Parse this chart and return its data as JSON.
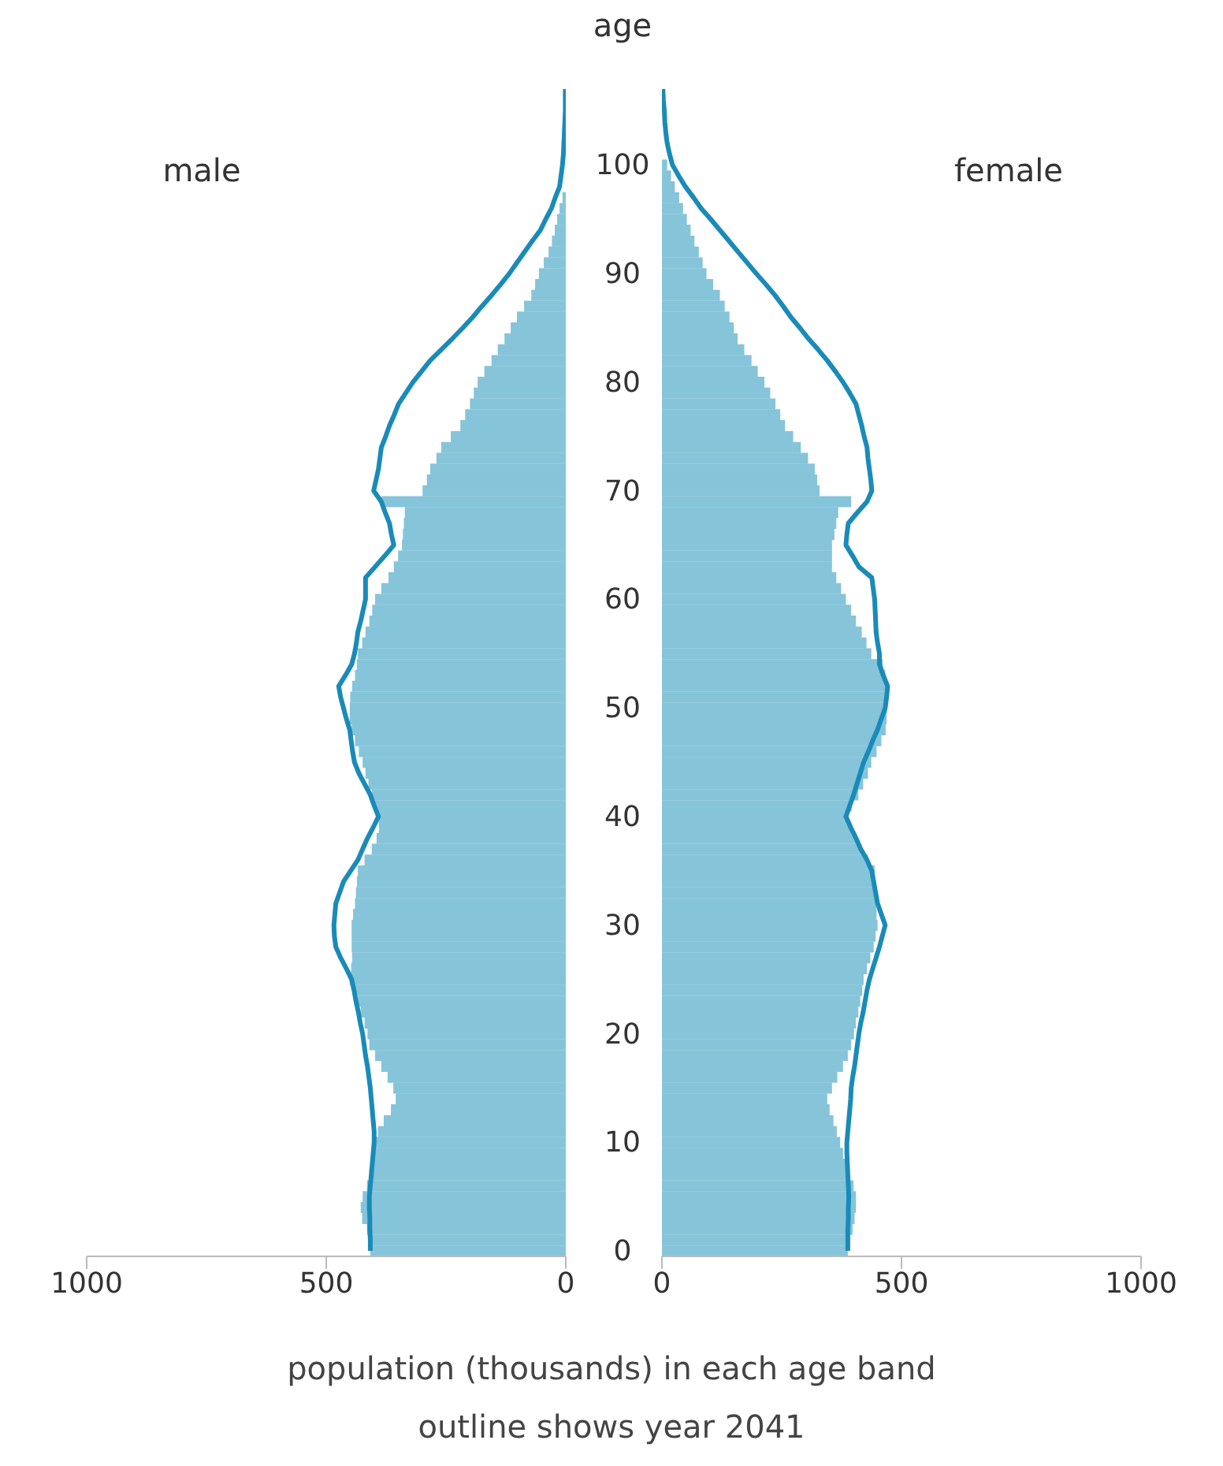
{
  "chart_data": [
    {
      "type": "bar",
      "orientation": "horizontal",
      "title": "male",
      "xlabel": "population (thousands) in each age band",
      "annotations": [
        "outline shows year 2041"
      ],
      "tick_labels": "x",
      "marker": "none",
      "categories": [
        null,
        null,
        null,
        null,
        null,
        null,
        null,
        "100",
        null,
        null,
        null,
        null,
        null,
        null,
        null,
        null,
        null,
        "90",
        null,
        null,
        null,
        null,
        null,
        null,
        null,
        null,
        null,
        "80",
        null,
        null,
        null,
        null,
        null,
        null,
        null,
        null,
        null,
        "70",
        null,
        null,
        null,
        null,
        null,
        null,
        null,
        null,
        null,
        "60",
        null,
        null,
        null,
        null,
        null,
        null,
        null,
        null,
        null,
        "50",
        null,
        null,
        null,
        null,
        null,
        null,
        null,
        null,
        null,
        "40",
        null,
        null,
        null,
        null,
        null,
        null,
        null,
        null,
        null,
        "30",
        null,
        null,
        null,
        null,
        null,
        null,
        null,
        null,
        null,
        "20",
        null,
        null,
        null,
        null,
        null,
        null,
        null,
        null,
        null,
        "10",
        null,
        null,
        null,
        null,
        null,
        null,
        null,
        null,
        null,
        "0"
      ],
      "xlim": [
        1000,
        0
      ],
      "xticks": [
        1000,
        500,
        0
      ],
      "series": [
        {
          "color": "#86c4da",
          "values": [
            null,
            null,
            null,
            null,
            null,
            null,
            null,
            null,
            null,
            null,
            7,
            13,
            18,
            23,
            29,
            36,
            46,
            56,
            64,
            72,
            87,
            102,
            115,
            128,
            142,
            155,
            170,
            184,
            192,
            200,
            210,
            220,
            240,
            260,
            270,
            283,
            290,
            299,
            385,
            336,
            338,
            340,
            342,
            350,
            359,
            370,
            385,
            398,
            404,
            410,
            418,
            425,
            434,
            436,
            440,
            446,
            450,
            451,
            451,
            447,
            440,
            432,
            424,
            418,
            412,
            405,
            398,
            391,
            390,
            395,
            405,
            420,
            434,
            436,
            438,
            440,
            444,
            447,
            447,
            447,
            446,
            448,
            451,
            442,
            435,
            428,
            420,
            414,
            410,
            398,
            385,
            372,
            360,
            355,
            365,
            380,
            392,
            398,
            400,
            405,
            410,
            415,
            424,
            428,
            425,
            415,
            410,
            408
          ]
        },
        {
          "type": "line",
          "color": "#1a8bb8",
          "values": [
            1,
            1,
            1,
            2,
            3,
            4,
            5,
            7,
            10,
            13,
            22,
            30,
            42,
            53,
            70,
            86,
            102,
            118,
            136,
            155,
            175,
            194,
            215,
            237,
            260,
            283,
            301,
            319,
            334,
            349,
            358,
            368,
            376,
            385,
            388,
            391,
            396,
            401,
            385,
            377,
            368,
            364,
            359,
            378,
            398,
            418,
            418,
            418,
            423,
            428,
            434,
            437,
            441,
            447,
            460,
            474,
            470,
            464,
            458,
            451,
            448,
            445,
            441,
            432,
            420,
            408,
            400,
            391,
            402,
            414,
            424,
            434,
            449,
            464,
            472,
            480,
            482,
            484,
            483,
            480,
            470,
            458,
            447,
            442,
            438,
            433,
            429,
            424,
            421,
            418,
            414,
            411,
            408,
            406,
            404,
            402,
            400,
            400,
            402,
            404,
            406,
            408,
            410,
            410,
            409,
            409,
            408,
            408
          ]
        }
      ]
    },
    {
      "type": "bar",
      "orientation": "horizontal",
      "title": "female",
      "ylabel": "age",
      "marker": "none",
      "categories": [
        null,
        null,
        null,
        null,
        null,
        null,
        null,
        "100",
        null,
        null,
        null,
        null,
        null,
        null,
        null,
        null,
        null,
        "90",
        null,
        null,
        null,
        null,
        null,
        null,
        null,
        null,
        null,
        "80",
        null,
        null,
        null,
        null,
        null,
        null,
        null,
        null,
        null,
        "70",
        null,
        null,
        null,
        null,
        null,
        null,
        null,
        null,
        null,
        "60",
        null,
        null,
        null,
        null,
        null,
        null,
        null,
        null,
        null,
        "50",
        null,
        null,
        null,
        null,
        null,
        null,
        null,
        null,
        null,
        "40",
        null,
        null,
        null,
        null,
        null,
        null,
        null,
        null,
        null,
        "30",
        null,
        null,
        null,
        null,
        null,
        null,
        null,
        null,
        null,
        "20",
        null,
        null,
        null,
        null,
        null,
        null,
        null,
        null,
        null,
        "10",
        null,
        null,
        null,
        null,
        null,
        null,
        null,
        null,
        null,
        "0"
      ],
      "xlim": [
        0,
        1000
      ],
      "xticks": [
        0,
        500,
        1000
      ],
      "series": [
        {
          "color": "#86c4da",
          "values": [
            null,
            null,
            null,
            null,
            null,
            null,
            null,
            11,
            19,
            27,
            36,
            44,
            52,
            60,
            68,
            77,
            85,
            93,
            107,
            121,
            131,
            141,
            150,
            158,
            172,
            187,
            200,
            214,
            226,
            237,
            247,
            257,
            274,
            290,
            305,
            319,
            324,
            329,
            395,
            368,
            364,
            360,
            355,
            355,
            355,
            364,
            374,
            384,
            395,
            405,
            417,
            427,
            437,
            461,
            466,
            470,
            470,
            470,
            469,
            467,
            458,
            448,
            437,
            430,
            420,
            410,
            396,
            388,
            395,
            405,
            415,
            430,
            444,
            445,
            446,
            447,
            448,
            450,
            446,
            442,
            435,
            428,
            421,
            418,
            414,
            410,
            405,
            401,
            395,
            388,
            378,
            366,
            355,
            345,
            350,
            358,
            365,
            372,
            378,
            385,
            392,
            400,
            405,
            405,
            402,
            398,
            392,
            388
          ]
        },
        {
          "type": "line",
          "color": "#1a8bb8",
          "values": [
            2,
            3,
            5,
            6,
            8,
            11,
            16,
            22,
            35,
            49,
            66,
            82,
            102,
            121,
            140,
            159,
            178,
            197,
            217,
            236,
            253,
            269,
            288,
            306,
            326,
            345,
            362,
            378,
            392,
            405,
            411,
            417,
            422,
            428,
            430,
            433,
            436,
            438,
            428,
            408,
            389,
            386,
            384,
            398,
            411,
            438,
            441,
            444,
            445,
            446,
            447,
            450,
            454,
            454,
            462,
            471,
            469,
            466,
            458,
            450,
            440,
            431,
            421,
            414,
            407,
            400,
            392,
            384,
            394,
            405,
            415,
            428,
            438,
            442,
            446,
            450,
            458,
            466,
            460,
            454,
            447,
            440,
            433,
            428,
            424,
            420,
            415,
            411,
            408,
            405,
            402,
            398,
            395,
            394,
            392,
            390,
            388,
            386,
            386,
            387,
            388,
            389,
            390,
            389,
            389,
            388,
            388,
            388
          ]
        }
      ]
    }
  ]
}
